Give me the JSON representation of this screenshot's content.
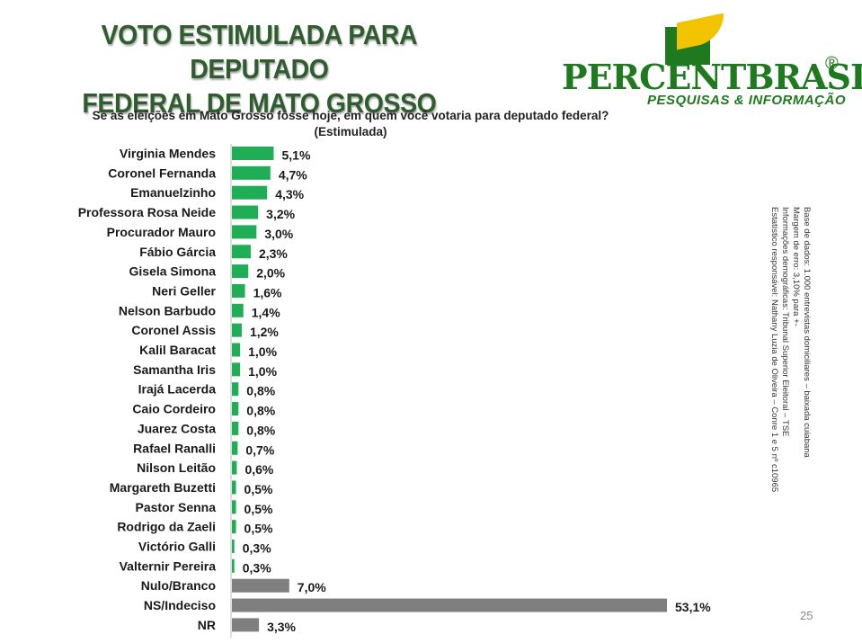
{
  "header": {
    "title_line1": "VOTO ESTIMULADA PARA DEPUTADO",
    "title_line2": "FEDERAL DE MATO GROSSO"
  },
  "logo": {
    "brand_part1": "PERCENT",
    "brand_part2": "BRASIL",
    "registered_mark": "®",
    "tagline": "PESQUISAS & INFORMAÇÃO"
  },
  "question": {
    "line1": "Se as eleições em Mato Grosso fosse hoje, em quem você votaria para deputado federal?",
    "line2": "(Estimulada)"
  },
  "methodology": {
    "line1": "Base de dados: 1.000 entrevistas domiciliares – baixada cuiabana",
    "line2": "Margem de erro: 3,10% para +-",
    "line3": "Informações demográficas: Tribunal Superior Eleitoral – TSE",
    "line4": "Estatístico responsável: Nathany Luzia de Oliveira – Conre 1 e 5 nº c10965"
  },
  "page_number": "25",
  "colors": {
    "candidate_bar": "#1fae55",
    "other_bar": "#7f7f7f",
    "title": "#2f5d2e"
  },
  "chart_data": {
    "type": "bar",
    "orientation": "horizontal",
    "categories": [
      "Virginia Mendes",
      "Coronel Fernanda",
      "Emanuelzinho",
      "Professora Rosa Neide",
      "Procurador Mauro",
      "Fábio Gárcia",
      "Gisela Simona",
      "Neri Geller",
      "Nelson Barbudo",
      "Coronel Assis",
      "Kalil Baracat",
      "Samantha Iris",
      "Irajá Lacerda",
      "Caio Cordeiro",
      "Juarez Costa",
      "Rafael Ranalli",
      "Nilson Leitão",
      "Margareth Buzetti",
      "Pastor Senna",
      "Rodrigo da Zaeli",
      "Victório Galli",
      "Valternir Pereira",
      "Nulo/Branco",
      "NS/Indeciso",
      "NR"
    ],
    "values": [
      5.1,
      4.7,
      4.3,
      3.2,
      3.0,
      2.3,
      2.0,
      1.6,
      1.4,
      1.2,
      1.0,
      1.0,
      0.8,
      0.8,
      0.8,
      0.7,
      0.6,
      0.5,
      0.5,
      0.5,
      0.3,
      0.3,
      7.0,
      53.1,
      3.3
    ],
    "value_labels": [
      "5,1%",
      "4,7%",
      "4,3%",
      "3,2%",
      "3,0%",
      "2,3%",
      "2,0%",
      "1,6%",
      "1,4%",
      "1,2%",
      "1,0%",
      "1,0%",
      "0,8%",
      "0,8%",
      "0,8%",
      "0,7%",
      "0,6%",
      "0,5%",
      "0,5%",
      "0,5%",
      "0,3%",
      "0,3%",
      "7,0%",
      "53,1%",
      "3,3%"
    ],
    "bar_group": [
      "candidate",
      "candidate",
      "candidate",
      "candidate",
      "candidate",
      "candidate",
      "candidate",
      "candidate",
      "candidate",
      "candidate",
      "candidate",
      "candidate",
      "candidate",
      "candidate",
      "candidate",
      "candidate",
      "candidate",
      "candidate",
      "candidate",
      "candidate",
      "candidate",
      "candidate",
      "other",
      "other",
      "other"
    ],
    "xlim": [
      0,
      53.1
    ],
    "grid": false,
    "legend": "none"
  }
}
